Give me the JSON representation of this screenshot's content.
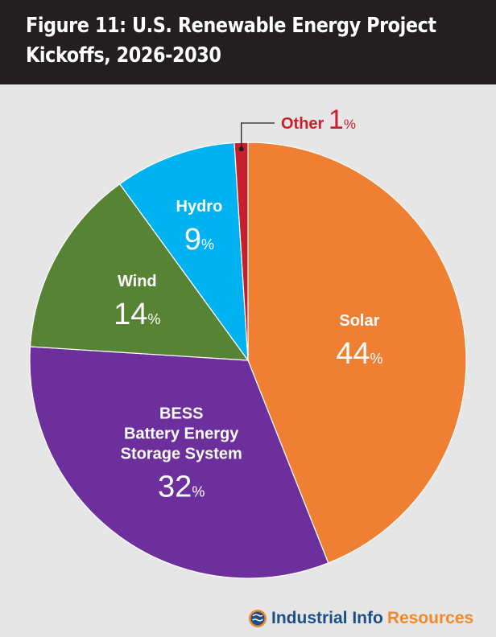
{
  "header": {
    "title_line1": "Figure 11: U.S. Renewable Energy Project",
    "title_line2": "Kickoffs, 2026-2030"
  },
  "chart_data": {
    "type": "pie",
    "title": "Figure 11: U.S. Renewable Energy Project Kickoffs, 2026-2030",
    "unit": "%",
    "slices": [
      {
        "label": [
          "Solar"
        ],
        "value": 44,
        "color": "#ef7f33"
      },
      {
        "label": [
          "BESS",
          "Battery Energy",
          "Storage System"
        ],
        "value": 32,
        "color": "#6d2f9c"
      },
      {
        "label": [
          "Wind"
        ],
        "value": 14,
        "color": "#568334"
      },
      {
        "label": [
          "Hydro"
        ],
        "value": 9,
        "color": "#00b2ef"
      },
      {
        "label": [
          "Other"
        ],
        "value": 1,
        "color": "#c81f2d"
      }
    ]
  },
  "footer": {
    "brand_part1": "Industrial Info",
    "brand_part2": "Resources",
    "brand_color1": "#1d4f86",
    "brand_color2": "#f0892d",
    "logo_icon": "globe-icon"
  }
}
